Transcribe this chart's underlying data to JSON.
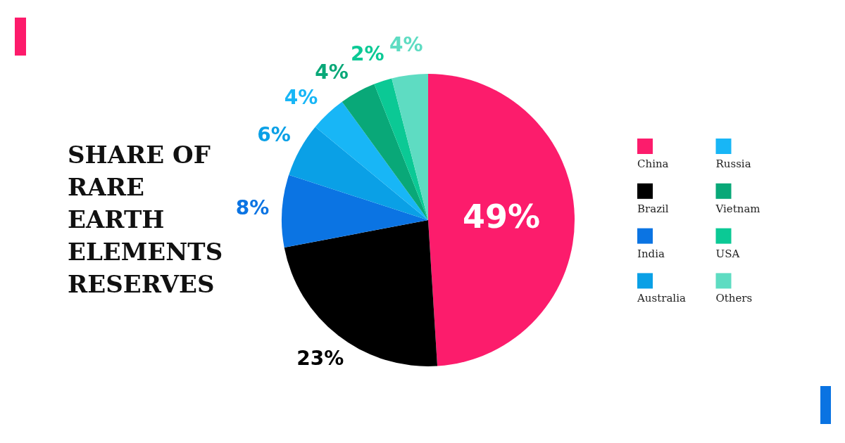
{
  "chart_data": {
    "type": "pie",
    "title": "SHARE OF RARE EARTH ELEMENTS RESERVES",
    "categories": [
      "China",
      "Brazil",
      "India",
      "Australia",
      "Russia",
      "Vietnam",
      "USA",
      "Others"
    ],
    "values": [
      49,
      23,
      8,
      6,
      4,
      4,
      2,
      4
    ],
    "colors": [
      "#fc1c6c",
      "#000000",
      "#0b74e3",
      "#0aa0e6",
      "#18b6f6",
      "#09a878",
      "#0bc995",
      "#5edcc2"
    ],
    "value_labels": [
      "49%",
      "23%",
      "8%",
      "6%",
      "4%",
      "4%",
      "2%",
      "4%"
    ],
    "legend": "right"
  }
}
